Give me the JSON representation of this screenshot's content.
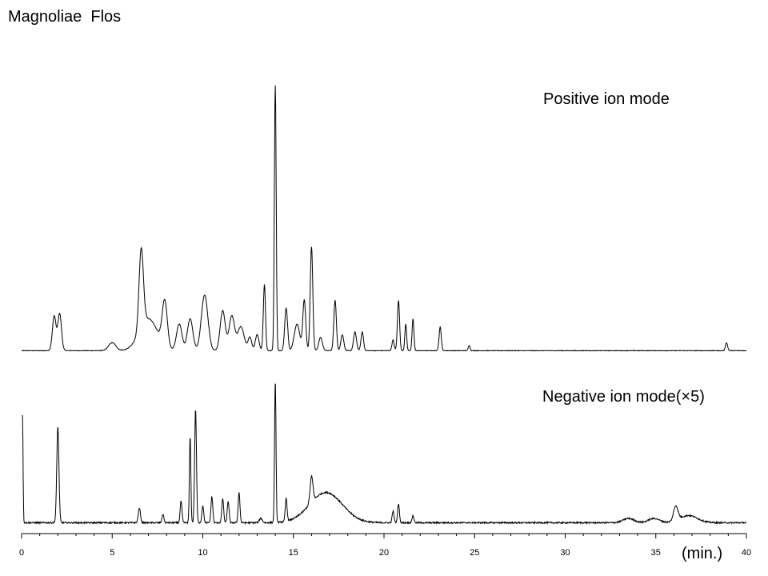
{
  "title": "Magnoliae  Flos",
  "x_unit_label": "(min.)",
  "colors": {
    "trace": "#000000",
    "background": "#ffffff"
  },
  "chart_data": {
    "type": "line",
    "title": "Magnoliae  Flos",
    "xlabel": "(min.)",
    "xlim": [
      0,
      40
    ],
    "x_ticks": [
      0,
      5,
      10,
      15,
      20,
      25,
      30,
      35,
      40
    ],
    "x_tick_labels": [
      "0",
      "5",
      "10",
      "15",
      "20",
      "25",
      "30",
      "35",
      "40"
    ],
    "y_axis_shown": false,
    "grid": false,
    "series": [
      {
        "name": "Positive ion mode",
        "start": 0,
        "end": 40,
        "baseline": 0.005,
        "peaks": [
          [
            1.8,
            0.13,
            0.1
          ],
          [
            2.1,
            0.14,
            0.1
          ],
          [
            5.0,
            0.03,
            0.2
          ],
          [
            6.6,
            0.3,
            0.12
          ],
          [
            7.0,
            0.12,
            0.5
          ],
          [
            7.9,
            0.17,
            0.14
          ],
          [
            8.7,
            0.1,
            0.15
          ],
          [
            9.3,
            0.12,
            0.15
          ],
          [
            10.1,
            0.21,
            0.18
          ],
          [
            11.1,
            0.15,
            0.14
          ],
          [
            11.6,
            0.13,
            0.15
          ],
          [
            12.1,
            0.09,
            0.18
          ],
          [
            12.6,
            0.05,
            0.1
          ],
          [
            13.0,
            0.06,
            0.1
          ],
          [
            13.4,
            0.25,
            0.06
          ],
          [
            14.0,
            1.0,
            0.05
          ],
          [
            14.6,
            0.16,
            0.08
          ],
          [
            15.2,
            0.1,
            0.15
          ],
          [
            15.6,
            0.19,
            0.08
          ],
          [
            16.0,
            0.39,
            0.07
          ],
          [
            16.5,
            0.05,
            0.1
          ],
          [
            17.3,
            0.19,
            0.07
          ],
          [
            17.7,
            0.06,
            0.08
          ],
          [
            18.4,
            0.07,
            0.08
          ],
          [
            18.8,
            0.07,
            0.07
          ],
          [
            20.5,
            0.04,
            0.06
          ],
          [
            20.8,
            0.19,
            0.06
          ],
          [
            21.2,
            0.1,
            0.05
          ],
          [
            21.6,
            0.12,
            0.05
          ],
          [
            23.1,
            0.09,
            0.06
          ],
          [
            24.7,
            0.02,
            0.05
          ],
          [
            38.9,
            0.03,
            0.06
          ]
        ]
      },
      {
        "name": "Negative ion mode(×5)",
        "start": 0.05,
        "end": 40,
        "baseline": 0.02,
        "peaks": [
          [
            0.05,
            0.75,
            0.03
          ],
          [
            2.0,
            0.67,
            0.06
          ],
          [
            6.5,
            0.1,
            0.06
          ],
          [
            7.8,
            0.06,
            0.05
          ],
          [
            8.8,
            0.15,
            0.05
          ],
          [
            9.3,
            0.6,
            0.04
          ],
          [
            9.6,
            0.79,
            0.05
          ],
          [
            10.0,
            0.12,
            0.05
          ],
          [
            10.5,
            0.18,
            0.05
          ],
          [
            11.1,
            0.17,
            0.05
          ],
          [
            11.4,
            0.15,
            0.05
          ],
          [
            12.0,
            0.21,
            0.05
          ],
          [
            13.2,
            0.03,
            0.08
          ],
          [
            14.0,
            0.99,
            0.04
          ],
          [
            14.6,
            0.16,
            0.05
          ],
          [
            16.0,
            0.18,
            0.08
          ],
          [
            16.8,
            0.21,
            0.9
          ],
          [
            20.5,
            0.08,
            0.05
          ],
          [
            20.8,
            0.13,
            0.05
          ],
          [
            21.6,
            0.05,
            0.05
          ],
          [
            33.5,
            0.03,
            0.3
          ],
          [
            34.9,
            0.03,
            0.3
          ],
          [
            36.1,
            0.1,
            0.12
          ],
          [
            36.8,
            0.05,
            0.5
          ]
        ]
      }
    ]
  }
}
